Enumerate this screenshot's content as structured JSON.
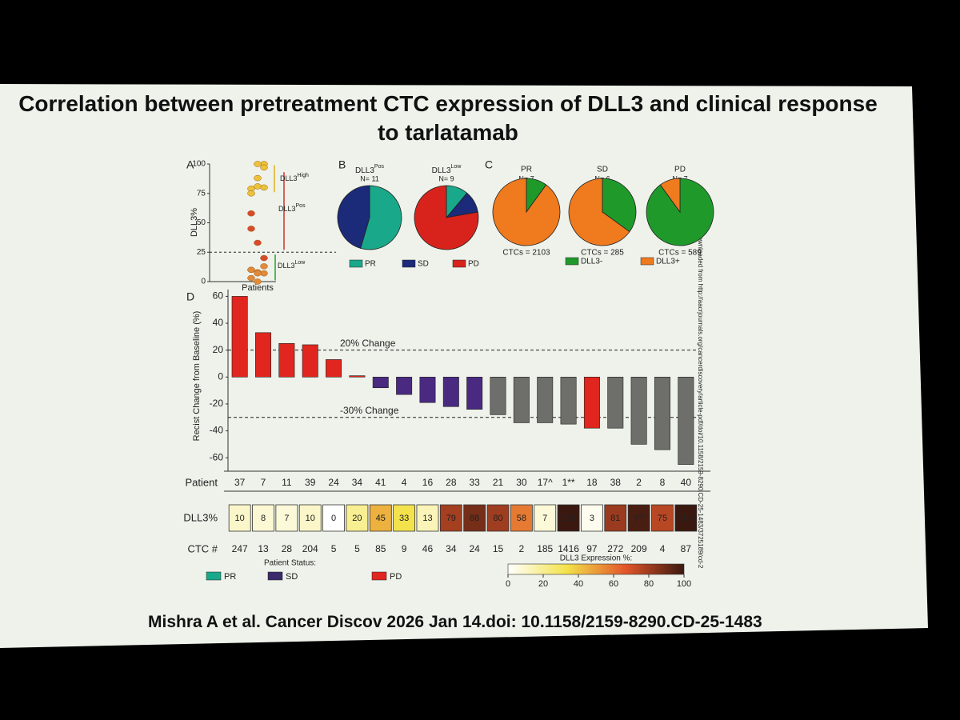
{
  "title": "Correlation between pretreatment CTC expression of DLL3 and clinical response to tarlatamab",
  "citation": "Mishra A et al. Cancer Discov 2026 Jan 14.doi: 10.1158/2159-8290.CD-25-1483",
  "watermark": "Downloaded from http://aacrjournals.org/cancerdiscovery/article-pdf/doi/10.1158/2159-8290.CD-25-1483/3725189/cd-2",
  "chart_data": [
    {
      "type": "strip",
      "panel": "A",
      "ylabel": "DLL3%",
      "xlabel": "Patients",
      "values": [
        10,
        8,
        7,
        10,
        0,
        20,
        45,
        33,
        13,
        79,
        88,
        80,
        58,
        7,
        100,
        3,
        81,
        97,
        75,
        100
      ],
      "colors": [
        "#e08a3a",
        "#e08a3a",
        "#e08a3a",
        "#e08a3a",
        "#e08a3a",
        "#d94a2a",
        "#d94a2a",
        "#d94a2a",
        "#e08a3a",
        "#ecc23a",
        "#ecc23a",
        "#ecc23a",
        "#d94a2a",
        "#e08a3a",
        "#ecc23a",
        "#e08a3a",
        "#ecc23a",
        "#ecc23a",
        "#ecc23a",
        "#ecc23a"
      ],
      "ylim": [
        0,
        100
      ],
      "yticks": [
        0,
        25,
        50,
        75,
        100
      ],
      "threshold": 25,
      "annotations": [
        {
          "text": "DLL3",
          "sup": "High"
        },
        {
          "text": "DLL3",
          "sup": "Pos"
        },
        {
          "text": "DLL3",
          "sup": "Low"
        }
      ]
    },
    {
      "type": "pie",
      "panel": "B",
      "series": [
        {
          "name": "PR",
          "color": "#1aa88a"
        },
        {
          "name": "SD",
          "color": "#1c2a7a"
        },
        {
          "name": "PD",
          "color": "#d8231c"
        }
      ],
      "pies": [
        {
          "title": "DLL3",
          "sup": "Pos",
          "subtitle": "N= 11",
          "values": [
            6,
            5,
            0
          ]
        },
        {
          "title": "DLL3",
          "sup": "Low",
          "subtitle": "N= 9",
          "values": [
            1,
            1,
            7
          ]
        }
      ]
    },
    {
      "type": "pie",
      "panel": "C",
      "series": [
        {
          "name": "DLL3-",
          "color": "#1f9a2a"
        },
        {
          "name": "DLL3+",
          "color": "#f07a1e"
        }
      ],
      "pies": [
        {
          "title": "PR",
          "subtitle": "N= 7",
          "footer": "CTCs = 2103",
          "values": [
            10,
            90
          ]
        },
        {
          "title": "SD",
          "subtitle": "N= 6",
          "footer": "CTCs = 285",
          "values": [
            35,
            65
          ]
        },
        {
          "title": "PD",
          "subtitle": "N= 7",
          "footer": "CTCs = 589",
          "values": [
            90,
            10
          ]
        }
      ]
    },
    {
      "type": "bar",
      "panel": "D",
      "ylabel": "Recist Change from Baseline (%)",
      "row_labels": [
        "Patient",
        "DLL3%",
        "CTC #"
      ],
      "categories": [
        "37",
        "7",
        "11",
        "39",
        "24",
        "34",
        "41",
        "4",
        "16",
        "28",
        "33",
        "21",
        "30",
        "17^",
        "1**",
        "18",
        "38",
        "2",
        "8",
        "40"
      ],
      "values": [
        60,
        33,
        25,
        24,
        13,
        1,
        -8,
        -13,
        -19,
        -22,
        -24,
        -28,
        -34,
        -34,
        -35,
        -38,
        -38,
        -50,
        -54,
        -65
      ],
      "colors": [
        "#e0261e",
        "#e0261e",
        "#e0261e",
        "#e0261e",
        "#e0261e",
        "#e0261e",
        "#4a2a80",
        "#4a2a80",
        "#4a2a80",
        "#4a2a80",
        "#4a2a80",
        "#6e6e6a",
        "#6e6e6a",
        "#6e6e6a",
        "#6e6e6a",
        "#e0261e",
        "#6e6e6a",
        "#6e6e6a",
        "#6e6e6a",
        "#6e6e6a"
      ],
      "dll3": [
        10,
        8,
        7,
        10,
        0,
        20,
        45,
        33,
        13,
        79,
        88,
        80,
        58,
        7,
        100,
        3,
        81,
        97,
        75,
        100
      ],
      "ctc": [
        247,
        13,
        28,
        204,
        5,
        5,
        85,
        9,
        46,
        34,
        24,
        15,
        2,
        185,
        1416,
        97,
        272,
        209,
        4,
        87
      ],
      "ylim": [
        -70,
        65
      ],
      "yticks": [
        -60,
        -40,
        -20,
        0,
        20,
        40,
        60
      ],
      "refs": [
        {
          "value": 20,
          "label": "20% Change"
        },
        {
          "value": -30,
          "label": "-30% Change"
        }
      ],
      "legend_title": "Patient Status:",
      "series": [
        {
          "name": "PR",
          "color": "#1aa88a"
        },
        {
          "name": "SD",
          "color": "#3a2a6a"
        },
        {
          "name": "PD",
          "color": "#e0261e"
        }
      ],
      "colorbar": {
        "title": "DLL3 Expression %:",
        "lim": [
          0,
          100
        ],
        "ticks": [
          0,
          20,
          40,
          60,
          80,
          100
        ],
        "colorscale": [
          "#ffffff",
          "#f3e24a",
          "#e2562a",
          "#3a1810"
        ]
      }
    }
  ]
}
